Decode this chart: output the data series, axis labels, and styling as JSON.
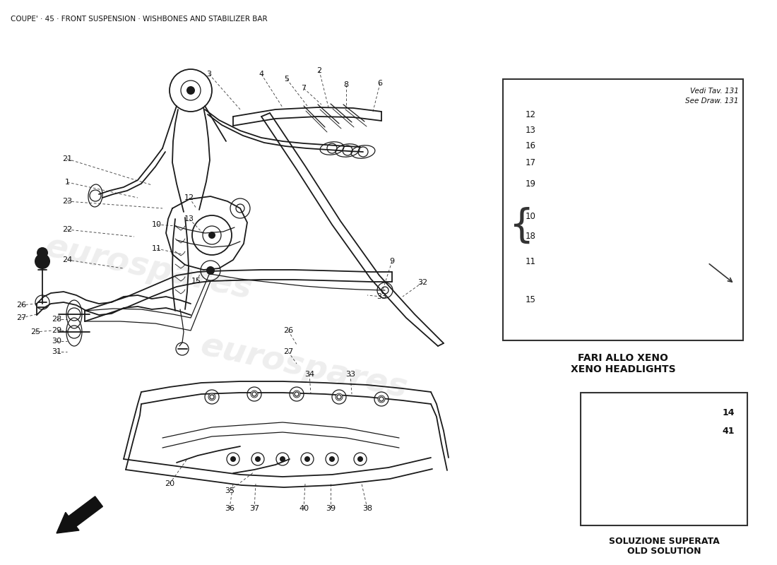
{
  "title": "COUPE' · 45 · FRONT SUSPENSION · WISHBONES AND STABILIZER BAR",
  "title_fontsize": 7.5,
  "bg_color": "#ffffff",
  "watermark_text": "eurospares",
  "watermark_color": "#c8c8c8",
  "watermark_alpha": 0.3,
  "box1_title_it": "FARI ALLO XENO",
  "box1_title_en": "XENO HEADLIGHTS",
  "box2_title_it": "SOLUZIONE SUPERATA",
  "box2_title_en": "OLD SOLUTION",
  "box1_note_it": "Vedi Tav. 131",
  "box1_note_en": "See Draw. 131"
}
